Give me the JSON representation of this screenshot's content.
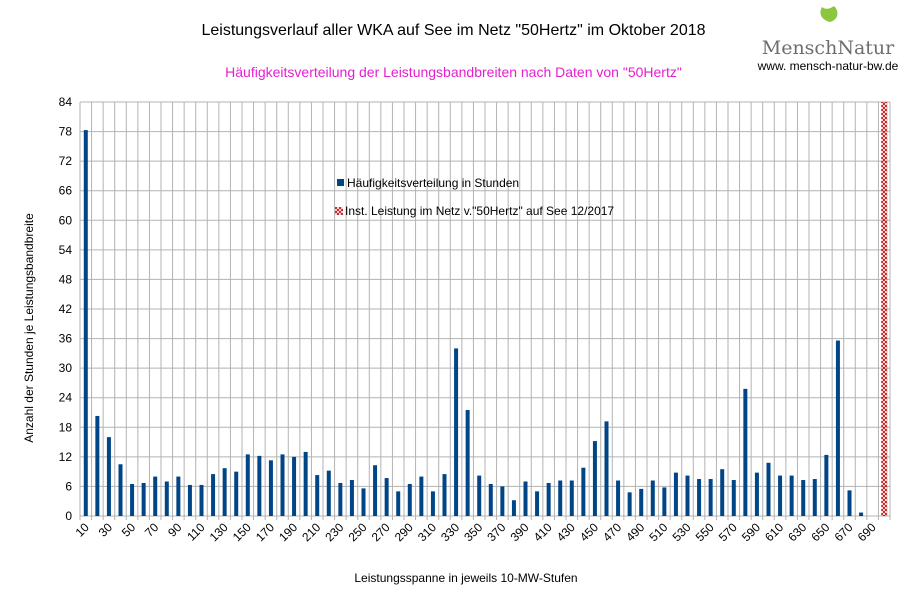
{
  "logo": {
    "brand": "MenschNatur",
    "url": "www. mensch-natur-bw.de"
  },
  "chart_data": {
    "type": "bar",
    "title": "Leistungsverlauf aller WKA auf See im Netz \"50Hertz\" im Oktober 2018",
    "subtitle": "Häufigkeitsverteilung der Leistungsbandbreiten nach Daten von \"50Hertz\"",
    "xlabel": "Leistungsspanne in jeweils 10-MW-Stufen",
    "ylabel": "Anzahl der Stunden je Leistungsbandbreite",
    "ylim": [
      0,
      84
    ],
    "yticks": [
      0,
      6,
      12,
      18,
      24,
      30,
      36,
      42,
      48,
      54,
      60,
      66,
      72,
      78,
      84
    ],
    "xtick_labels": [
      "10",
      "30",
      "50",
      "70",
      "90",
      "110",
      "130",
      "150",
      "170",
      "190",
      "210",
      "230",
      "250",
      "270",
      "290",
      "310",
      "330",
      "350",
      "370",
      "390",
      "410",
      "430",
      "450",
      "470",
      "490",
      "510",
      "530",
      "550",
      "570",
      "590",
      "610",
      "630",
      "650",
      "670",
      "690"
    ],
    "categories": [
      10,
      20,
      30,
      40,
      50,
      60,
      70,
      80,
      90,
      100,
      110,
      120,
      130,
      140,
      150,
      160,
      170,
      180,
      190,
      200,
      210,
      220,
      230,
      240,
      250,
      260,
      270,
      280,
      290,
      300,
      310,
      320,
      330,
      340,
      350,
      360,
      370,
      380,
      390,
      400,
      410,
      420,
      430,
      440,
      450,
      460,
      470,
      480,
      490,
      500,
      510,
      520,
      530,
      540,
      550,
      560,
      570,
      580,
      590,
      600,
      610,
      620,
      630,
      640,
      650,
      660,
      670,
      680,
      690,
      700
    ],
    "grid": true,
    "legend_position": "center",
    "series": [
      {
        "name": "Häufigkeitsverteilung in Stunden",
        "color": "#004586",
        "values": [
          78.3,
          20.3,
          16,
          10.5,
          6.5,
          6.7,
          8,
          7,
          8,
          6.3,
          6.3,
          8.5,
          9.7,
          9,
          12.5,
          12.2,
          11.3,
          12.5,
          12,
          13,
          8.3,
          9.2,
          6.7,
          7.3,
          5.6,
          10.3,
          7.7,
          5,
          6.5,
          8,
          5,
          8.5,
          34,
          21.5,
          8.2,
          6.5,
          6,
          3.2,
          7,
          5,
          6.7,
          7.2,
          7.2,
          9.8,
          15.2,
          19.2,
          7.2,
          4.8,
          5.5,
          7.2,
          5.8,
          8.8,
          8.2,
          7.5,
          7.5,
          9.5,
          7.3,
          25.8,
          8.8,
          10.8,
          8.2,
          8.2,
          7.3,
          7.5,
          12.4,
          35.6,
          5.2,
          0.7,
          0,
          0
        ]
      },
      {
        "name": "Inst. Leistung im Netz v.\"50Hertz\" auf See 12/2017",
        "color": "#c00000",
        "values": [
          0,
          0,
          0,
          0,
          0,
          0,
          0,
          0,
          0,
          0,
          0,
          0,
          0,
          0,
          0,
          0,
          0,
          0,
          0,
          0,
          0,
          0,
          0,
          0,
          0,
          0,
          0,
          0,
          0,
          0,
          0,
          0,
          0,
          0,
          0,
          0,
          0,
          0,
          0,
          0,
          0,
          0,
          0,
          0,
          0,
          0,
          0,
          0,
          0,
          0,
          0,
          0,
          0,
          0,
          0,
          0,
          0,
          0,
          0,
          0,
          0,
          0,
          0,
          0,
          0,
          0,
          0,
          0,
          0,
          84
        ]
      }
    ]
  }
}
